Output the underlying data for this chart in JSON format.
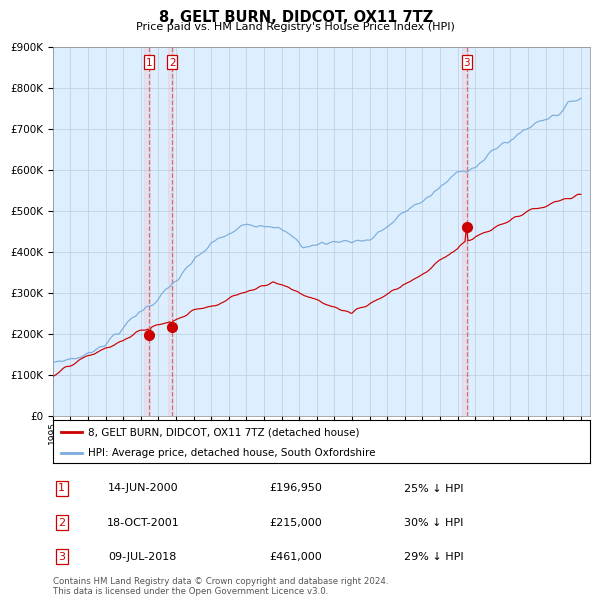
{
  "title": "8, GELT BURN, DIDCOT, OX11 7TZ",
  "subtitle": "Price paid vs. HM Land Registry's House Price Index (HPI)",
  "legend_line1": "8, GELT BURN, DIDCOT, OX11 7TZ (detached house)",
  "legend_line2": "HPI: Average price, detached house, South Oxfordshire",
  "table_rows": [
    {
      "num": "1",
      "date": "14-JUN-2000",
      "price": "£196,950",
      "pct": "25% ↓ HPI"
    },
    {
      "num": "2",
      "date": "18-OCT-2001",
      "price": "£215,000",
      "pct": "30% ↓ HPI"
    },
    {
      "num": "3",
      "date": "09-JUL-2018",
      "price": "£461,000",
      "pct": "29% ↓ HPI"
    }
  ],
  "footer": "Contains HM Land Registry data © Crown copyright and database right 2024.\nThis data is licensed under the Open Government Licence v3.0.",
  "red_color": "#cc0000",
  "blue_color": "#7aaddb",
  "bg_color": "#ddeeff",
  "grid_color": "#bbccdd",
  "ylim": [
    0,
    900000
  ],
  "sale_years": [
    2000.46,
    2001.79,
    2018.52
  ],
  "sale_prices": [
    196950,
    215000,
    461000
  ],
  "sale_labels": [
    "1",
    "2",
    "3"
  ],
  "xstart": 1995,
  "xend": 2025
}
